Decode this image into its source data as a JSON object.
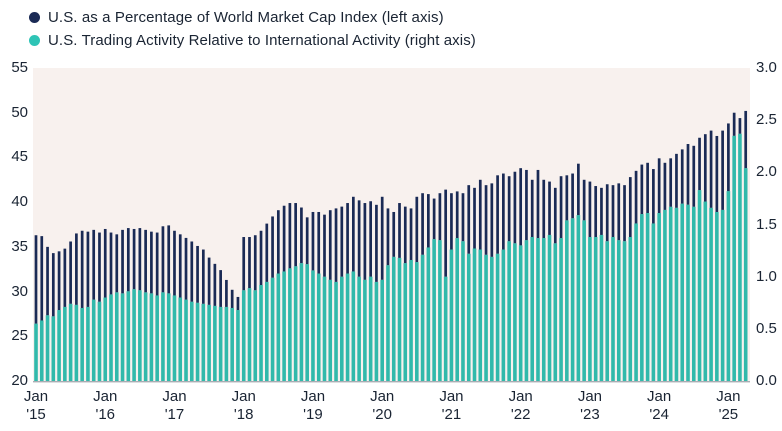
{
  "legend": [
    {
      "label": "U.S. as a Percentage of World Market Cap Index (left axis)",
      "color": "#1a2a55"
    },
    {
      "label": "U.S. Trading Activity Relative to International Activity (right axis)",
      "color": "#2ec4b6"
    }
  ],
  "chart_data": {
    "type": "bar",
    "subtype": "stacked-dual-axis-monthly",
    "title": "",
    "x_frequency": "monthly",
    "start_month": "2015-01",
    "end_month": "2025-04",
    "x_tick_labels": [
      [
        "Jan",
        "'15"
      ],
      [
        "Jan",
        "'16"
      ],
      [
        "Jan",
        "'17"
      ],
      [
        "Jan",
        "'18"
      ],
      [
        "Jan",
        "'19"
      ],
      [
        "Jan",
        "'20"
      ],
      [
        "Jan",
        "'21"
      ],
      [
        "Jan",
        "'22"
      ],
      [
        "Jan",
        "'23"
      ],
      [
        "Jan",
        "'24"
      ],
      [
        "Jan",
        "'25"
      ]
    ],
    "left_axis": {
      "range": [
        20,
        55
      ],
      "tick_values": [
        55,
        50,
        45,
        40,
        35,
        30,
        25,
        20
      ],
      "tick_labels": [
        "55",
        "50",
        "45",
        "40",
        "35",
        "30",
        "25",
        "20"
      ]
    },
    "right_axis": {
      "range": [
        0,
        3
      ],
      "tick_values": [
        3.0,
        2.5,
        2.0,
        1.5,
        1.0,
        0.5,
        0.0
      ],
      "tick_labels": [
        "3.0",
        "2.5",
        "2.0",
        "1.5",
        "1.0",
        "0.5",
        "0.0"
      ]
    },
    "series": [
      {
        "name": "U.S. as a Percentage of World Market Cap Index",
        "axis": "left",
        "color": "#1a2a55",
        "values": [
          36.3,
          36.2,
          35.0,
          34.3,
          34.5,
          34.8,
          35.6,
          36.5,
          36.8,
          36.7,
          36.9,
          36.6,
          37.0,
          36.6,
          36.4,
          36.9,
          37.1,
          37.0,
          37.1,
          36.9,
          36.7,
          36.6,
          37.3,
          37.4,
          36.8,
          36.4,
          36.0,
          35.6,
          35.1,
          34.7,
          33.8,
          33.1,
          32.4,
          31.3,
          30.2,
          29.4,
          36.1,
          36.1,
          36.3,
          36.8,
          37.6,
          38.4,
          39.1,
          39.6,
          39.9,
          39.9,
          39.4,
          38.3,
          38.9,
          38.9,
          38.6,
          39.1,
          39.3,
          39.5,
          39.9,
          40.6,
          40.2,
          39.9,
          40.1,
          39.7,
          40.6,
          39.3,
          38.9,
          39.9,
          39.5,
          39.3,
          40.6,
          41.0,
          40.9,
          40.4,
          41.0,
          41.4,
          41.0,
          41.2,
          41.0,
          41.9,
          41.6,
          42.5,
          41.9,
          42.1,
          43.0,
          43.2,
          42.9,
          43.4,
          43.8,
          43.6,
          42.5,
          43.6,
          42.5,
          42.3,
          41.6,
          42.9,
          43.0,
          43.2,
          44.3,
          42.5,
          42.3,
          41.8,
          41.6,
          42.0,
          41.9,
          42.1,
          41.9,
          42.8,
          43.5,
          44.2,
          44.4,
          43.7,
          44.9,
          44.4,
          44.9,
          45.4,
          45.9,
          46.5,
          46.3,
          47.2,
          47.6,
          48.0,
          47.4,
          48.0,
          48.8,
          50.0,
          49.4,
          50.2
        ]
      },
      {
        "name": "U.S. Trading Activity Relative to International Activity",
        "axis": "right",
        "color": "#31b9ab",
        "values": [
          0.55,
          0.58,
          0.63,
          0.62,
          0.68,
          0.71,
          0.74,
          0.73,
          0.7,
          0.71,
          0.78,
          0.76,
          0.8,
          0.83,
          0.85,
          0.84,
          0.86,
          0.88,
          0.87,
          0.85,
          0.84,
          0.82,
          0.85,
          0.84,
          0.82,
          0.8,
          0.78,
          0.76,
          0.75,
          0.74,
          0.73,
          0.72,
          0.71,
          0.71,
          0.7,
          0.68,
          0.87,
          0.89,
          0.87,
          0.92,
          0.95,
          0.99,
          1.03,
          1.05,
          1.08,
          1.1,
          1.13,
          1.12,
          1.06,
          1.03,
          1.0,
          0.97,
          0.95,
          1.0,
          1.03,
          1.05,
          1.0,
          0.97,
          1.0,
          0.95,
          0.97,
          1.11,
          1.19,
          1.18,
          1.13,
          1.16,
          1.14,
          1.21,
          1.28,
          1.36,
          1.35,
          1.0,
          1.26,
          1.37,
          1.34,
          1.22,
          1.27,
          1.26,
          1.21,
          1.19,
          1.22,
          1.26,
          1.34,
          1.32,
          1.3,
          1.35,
          1.38,
          1.37,
          1.37,
          1.4,
          1.32,
          1.37,
          1.54,
          1.56,
          1.59,
          1.54,
          1.38,
          1.38,
          1.4,
          1.34,
          1.38,
          1.35,
          1.34,
          1.38,
          1.51,
          1.6,
          1.61,
          1.51,
          1.61,
          1.64,
          1.67,
          1.66,
          1.7,
          1.69,
          1.67,
          1.83,
          1.72,
          1.66,
          1.62,
          1.64,
          1.82,
          2.35,
          2.37,
          2.04
        ]
      }
    ],
    "colors": {
      "plot_background": "#f8f1ee",
      "baseline": "#a9adb3"
    },
    "legend_position": "top-left",
    "grid": "off"
  }
}
